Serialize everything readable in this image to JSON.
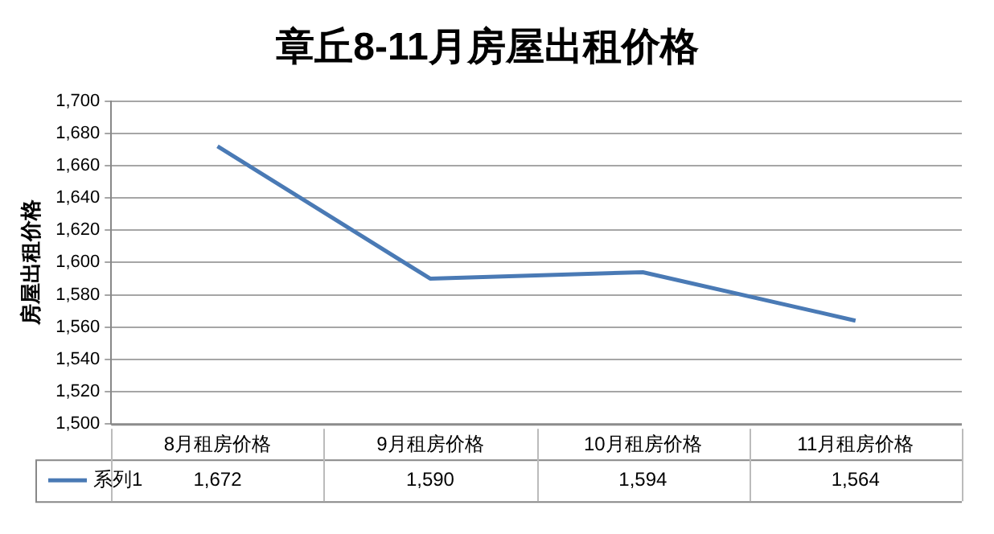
{
  "chart_data": {
    "type": "line",
    "title": "章丘8-11月房屋出租价格",
    "ylabel": "房屋出租价格",
    "categories": [
      "8月租房价格",
      "9月租房价格",
      "10月租房价格",
      "11月租房价格"
    ],
    "series": [
      {
        "name": "系列1",
        "color": "#4a7ab5",
        "values": [
          1672,
          1590,
          1594,
          1564
        ],
        "value_labels": [
          "1,672",
          "1,590",
          "1,594",
          "1,564"
        ]
      }
    ],
    "ylim": [
      1500,
      1700
    ],
    "yticks": [
      {
        "value": 1500,
        "label": "1,500"
      },
      {
        "value": 1520,
        "label": "1,520"
      },
      {
        "value": 1540,
        "label": "1,540"
      },
      {
        "value": 1560,
        "label": "1,560"
      },
      {
        "value": 1580,
        "label": "1,580"
      },
      {
        "value": 1600,
        "label": "1,600"
      },
      {
        "value": 1620,
        "label": "1,620"
      },
      {
        "value": 1640,
        "label": "1,640"
      },
      {
        "value": 1660,
        "label": "1,660"
      },
      {
        "value": 1680,
        "label": "1,680"
      },
      {
        "value": 1700,
        "label": "1,700"
      }
    ],
    "grid": "y",
    "legend": "bottom left",
    "marker": "none",
    "line_style": "solid"
  }
}
